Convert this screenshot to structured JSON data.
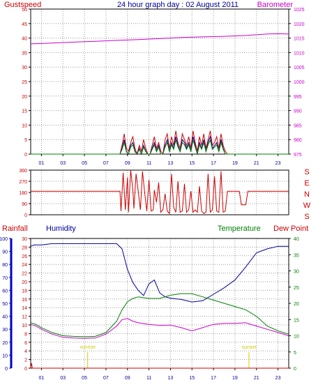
{
  "chart_data": [
    {
      "type": "line",
      "title": "24 hour graph day : 02 August 2011",
      "left_label": "Gustspeed",
      "right_label": "Barometer",
      "left_ylim": [
        0,
        50
      ],
      "right_ylim": [
        975,
        1025
      ],
      "left_ticks": [
        "0",
        "5",
        "10",
        "15",
        "20",
        "25",
        "30",
        "35",
        "40",
        "45",
        "50"
      ],
      "right_ticks": [
        "975",
        "980",
        "985",
        "990",
        "995",
        "1000",
        "1005",
        "1010",
        "1015",
        "1020",
        "1025"
      ],
      "x_ticks": [
        "01",
        "03",
        "05",
        "07",
        "09",
        "11",
        "13",
        "15",
        "17",
        "19",
        "21",
        "23"
      ],
      "xlim": [
        0,
        24
      ],
      "grid": true,
      "colors": {
        "barometer": "#cc00cc",
        "gust": "#cc0000",
        "wind_green": "#008000",
        "wind_blue": "#000099"
      },
      "series": [
        {
          "name": "Barometer",
          "axis": "right",
          "x": [
            0,
            2,
            4,
            6,
            8,
            10,
            12,
            14,
            16,
            18,
            20,
            22,
            23,
            24
          ],
          "values": [
            1013,
            1013.3,
            1013.6,
            1013.9,
            1014.2,
            1014.5,
            1014.8,
            1015.2,
            1015.4,
            1015.6,
            1015.9,
            1016.4,
            1016.5,
            1016.4
          ]
        },
        {
          "name": "Gustspeed",
          "axis": "left",
          "x": [
            0,
            8.3,
            8.5,
            8.7,
            8.9,
            9.1,
            9.3,
            9.5,
            9.7,
            9.9,
            10.1,
            10.3,
            10.5,
            10.7,
            10.9,
            11.1,
            11.3,
            11.5,
            11.7,
            11.9,
            12.1,
            12.3,
            12.5,
            12.7,
            12.9,
            13.1,
            13.3,
            13.5,
            13.7,
            13.9,
            14.1,
            14.3,
            14.5,
            14.7,
            14.9,
            15.1,
            15.3,
            15.5,
            15.7,
            15.9,
            16.1,
            16.3,
            16.5,
            16.7,
            16.9,
            17.1,
            17.3,
            17.5,
            17.7,
            17.9,
            18.1,
            18.3,
            24
          ],
          "values": [
            0,
            0,
            3,
            7,
            2,
            1,
            4,
            6,
            2,
            0,
            3,
            1,
            5,
            2,
            0,
            0,
            3,
            6,
            2,
            4,
            1,
            0,
            5,
            7,
            2,
            6,
            3,
            8,
            4,
            2,
            7,
            5,
            3,
            6,
            2,
            8,
            4,
            1,
            6,
            3,
            7,
            2,
            5,
            8,
            3,
            4,
            6,
            2,
            7,
            3,
            1,
            0,
            0
          ]
        },
        {
          "name": "Windspeed",
          "axis": "left",
          "x": [
            0,
            8.3,
            8.5,
            8.7,
            8.9,
            9.1,
            9.3,
            9.5,
            9.7,
            9.9,
            10.1,
            10.3,
            10.5,
            10.7,
            10.9,
            11.1,
            11.3,
            11.5,
            11.7,
            11.9,
            12.1,
            12.3,
            12.5,
            12.7,
            12.9,
            13.1,
            13.3,
            13.5,
            13.7,
            13.9,
            14.1,
            14.3,
            14.5,
            14.7,
            14.9,
            15.1,
            15.3,
            15.5,
            15.7,
            15.9,
            16.1,
            16.3,
            16.5,
            16.7,
            16.9,
            17.1,
            17.3,
            17.5,
            17.7,
            17.9,
            18.1,
            18.3,
            24
          ],
          "values": [
            0,
            0,
            2,
            5,
            1,
            0,
            3,
            4,
            1,
            0,
            2,
            0,
            3,
            1,
            0,
            0,
            2,
            4,
            1,
            3,
            0,
            0,
            3,
            5,
            1,
            4,
            2,
            6,
            3,
            1,
            5,
            4,
            2,
            4,
            1,
            6,
            3,
            0,
            4,
            2,
            5,
            1,
            4,
            6,
            2,
            3,
            4,
            1,
            5,
            2,
            0,
            0,
            0
          ]
        }
      ]
    },
    {
      "type": "line",
      "ylim": [
        0,
        360
      ],
      "y_ticks": [
        "0",
        "90",
        "180",
        "270",
        "360"
      ],
      "right_labels": [
        "S",
        "E",
        "N",
        "W",
        "S"
      ],
      "xlim": [
        0,
        24
      ],
      "grid": true,
      "series": [
        {
          "name": "Wind Direction",
          "x": [
            0,
            8,
            8.3,
            8.4,
            8.6,
            8.8,
            9,
            9.1,
            9.3,
            9.5,
            9.6,
            9.8,
            10,
            10.2,
            10.4,
            10.6,
            10.8,
            11,
            11.2,
            11.4,
            11.5,
            11.7,
            11.9,
            12.1,
            12.3,
            12.5,
            12.7,
            12.9,
            13.1,
            13.3,
            13.5,
            13.7,
            13.9,
            14.1,
            14.3,
            14.5,
            14.7,
            14.9,
            15.1,
            15.3,
            15.5,
            15.7,
            15.9,
            16.1,
            16.3,
            16.5,
            16.7,
            16.9,
            17.1,
            17.3,
            17.5,
            17.7,
            17.9,
            18.1,
            18.3,
            18.6,
            19.2,
            19.4,
            19.6,
            20,
            20.2,
            20.5,
            24
          ],
          "values": [
            190,
            190,
            190,
            30,
            340,
            40,
            300,
            20,
            360,
            200,
            50,
            330,
            190,
            40,
            350,
            180,
            30,
            280,
            30,
            40,
            200,
            100,
            260,
            20,
            40,
            170,
            30,
            10,
            330,
            60,
            20,
            270,
            20,
            30,
            250,
            20,
            40,
            190,
            20,
            40,
            20,
            230,
            30,
            10,
            20,
            330,
            20,
            40,
            310,
            30,
            20,
            350,
            20,
            30,
            190,
            190,
            190,
            190,
            80,
            80,
            190,
            190,
            190
          ]
        }
      ]
    },
    {
      "type": "line",
      "left_label_1": "Rainfall",
      "left_label_2": "Humidity",
      "right_label_1": "Temperature",
      "right_label_2": "Dew Point",
      "rain_ylim": [
        0,
        30
      ],
      "rain_ticks": [
        "0",
        "2",
        "4",
        "6",
        "8",
        "10",
        "12",
        "14",
        "16",
        "18",
        "20",
        "22",
        "24",
        "26",
        "28",
        "30"
      ],
      "humidity_ylim": [
        0,
        100
      ],
      "humidity_ticks": [
        "0",
        "10",
        "20",
        "30",
        "40",
        "50",
        "60",
        "70",
        "80",
        "90",
        "100"
      ],
      "temp_ylim": [
        0,
        40
      ],
      "temp_ticks": [
        "0",
        "5",
        "10",
        "15",
        "20",
        "25",
        "30",
        "35",
        "40"
      ],
      "xlim": [
        0,
        24
      ],
      "sunrise_label": "sunrise",
      "sunset_label": "sunset",
      "sunrise_x": 5.3,
      "sunset_x": 20.3,
      "grid": true,
      "colors": {
        "humidity": "#000099",
        "temperature": "#008000",
        "dewpoint": "#cc00cc",
        "rain": "#cc0000",
        "sun": "#cccc00"
      },
      "series": [
        {
          "name": "Humidity",
          "axis": "humidity",
          "x": [
            0,
            0.3,
            1,
            2,
            3,
            4,
            5,
            6,
            7,
            8,
            8.5,
            9,
            9.5,
            10,
            10.5,
            11,
            11.5,
            12,
            12.5,
            13,
            14,
            15,
            16,
            17,
            18,
            19,
            20,
            21,
            22,
            23,
            24
          ],
          "values": [
            94,
            95,
            95,
            96,
            96,
            96,
            96,
            96,
            96,
            96,
            92,
            76,
            66,
            60,
            56,
            65,
            68,
            58,
            55,
            54,
            53,
            51,
            52,
            57,
            62,
            68,
            78,
            89,
            92,
            94,
            94
          ]
        },
        {
          "name": "Temperature",
          "axis": "temp",
          "x": [
            0,
            0.5,
            1,
            2,
            3,
            4,
            5,
            6,
            7,
            8,
            8.5,
            9,
            9.5,
            10,
            11,
            12,
            13,
            14,
            15,
            16,
            17,
            18,
            19,
            20,
            21,
            22,
            23,
            24
          ],
          "values": [
            14,
            13.5,
            12.5,
            11,
            10,
            9.8,
            9.7,
            9.8,
            11,
            14.5,
            18,
            20.5,
            21.5,
            22,
            21.5,
            21.5,
            22.5,
            23,
            23,
            22,
            21,
            20,
            19,
            18,
            16,
            13,
            11.5,
            10.5
          ]
        },
        {
          "name": "Dew Point",
          "axis": "temp",
          "x": [
            0,
            0.5,
            1,
            2,
            3,
            4,
            5,
            6,
            7,
            8,
            8.5,
            9,
            9.5,
            10,
            11,
            12,
            13,
            14,
            15,
            16,
            17,
            18,
            19,
            20,
            21,
            22,
            23,
            24
          ],
          "values": [
            13.5,
            13,
            12,
            10.5,
            9.5,
            9.3,
            9.2,
            9.3,
            10.5,
            13,
            15,
            15.3,
            14.5,
            14,
            13.5,
            13.2,
            13.3,
            12.5,
            11.5,
            12.5,
            13.5,
            13.8,
            13.8,
            14,
            13,
            12,
            11,
            10
          ]
        },
        {
          "name": "Rainfall",
          "axis": "rain",
          "x": [
            0,
            0.05,
            0.1,
            0.15,
            24
          ],
          "values": [
            0,
            1,
            1,
            0,
            0
          ]
        }
      ]
    }
  ]
}
